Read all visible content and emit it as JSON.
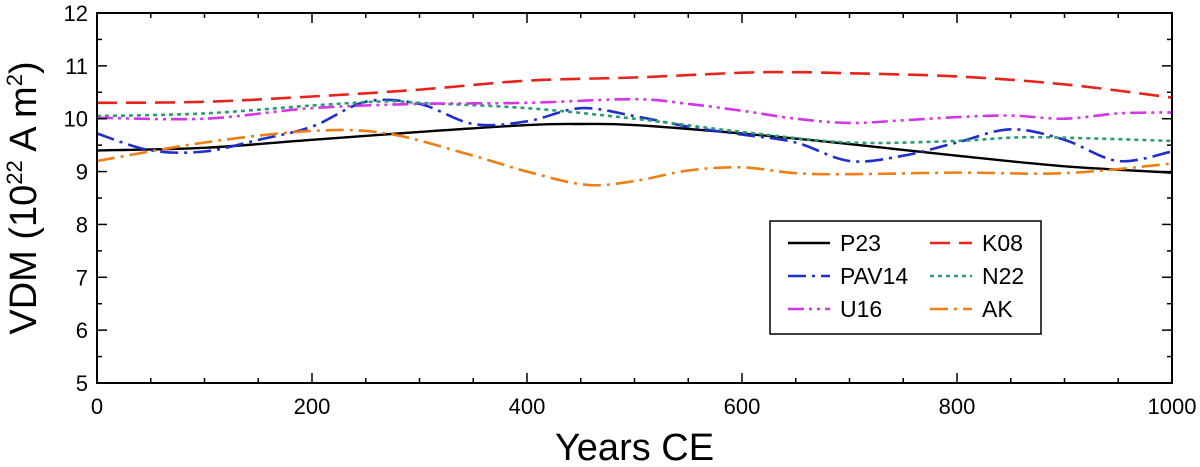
{
  "chart_data": {
    "type": "line",
    "xlabel": "Years CE",
    "ylabel_parts": [
      "VDM (10",
      "22",
      " A m",
      "2",
      ")"
    ],
    "xlim": [
      0,
      1000
    ],
    "ylim": [
      5,
      12
    ],
    "xticks": [
      0,
      200,
      400,
      600,
      800,
      1000
    ],
    "yticks": [
      5,
      6,
      7,
      8,
      9,
      10,
      11,
      12
    ],
    "grid": false,
    "legend_position": "lower-right",
    "series": [
      {
        "name": "P23",
        "color": "#000000",
        "dash": "solid",
        "points": [
          [
            0,
            9.4
          ],
          [
            100,
            9.45
          ],
          [
            200,
            9.6
          ],
          [
            300,
            9.75
          ],
          [
            400,
            9.88
          ],
          [
            450,
            9.9
          ],
          [
            500,
            9.88
          ],
          [
            600,
            9.72
          ],
          [
            700,
            9.52
          ],
          [
            800,
            9.3
          ],
          [
            900,
            9.1
          ],
          [
            1000,
            8.98
          ]
        ]
      },
      {
        "name": "K08",
        "color": "#e8231b",
        "dash": "dash",
        "points": [
          [
            0,
            10.3
          ],
          [
            100,
            10.32
          ],
          [
            200,
            10.42
          ],
          [
            300,
            10.55
          ],
          [
            400,
            10.72
          ],
          [
            500,
            10.78
          ],
          [
            600,
            10.87
          ],
          [
            650,
            10.88
          ],
          [
            700,
            10.86
          ],
          [
            800,
            10.8
          ],
          [
            900,
            10.65
          ],
          [
            1000,
            10.4
          ]
        ]
      },
      {
        "name": "PAV14",
        "color": "#1f2fcc",
        "dash": "dashdot",
        "points": [
          [
            0,
            9.72
          ],
          [
            50,
            9.4
          ],
          [
            100,
            9.38
          ],
          [
            150,
            9.6
          ],
          [
            200,
            9.85
          ],
          [
            250,
            10.32
          ],
          [
            300,
            10.28
          ],
          [
            350,
            9.9
          ],
          [
            400,
            9.95
          ],
          [
            450,
            10.2
          ],
          [
            500,
            10.05
          ],
          [
            550,
            9.85
          ],
          [
            600,
            9.7
          ],
          [
            650,
            9.55
          ],
          [
            700,
            9.2
          ],
          [
            750,
            9.3
          ],
          [
            800,
            9.55
          ],
          [
            850,
            9.8
          ],
          [
            900,
            9.6
          ],
          [
            950,
            9.2
          ],
          [
            1000,
            9.38
          ]
        ]
      },
      {
        "name": "N22",
        "color": "#2a9d6b",
        "dash": "dot",
        "points": [
          [
            0,
            10.05
          ],
          [
            100,
            10.1
          ],
          [
            200,
            10.25
          ],
          [
            270,
            10.33
          ],
          [
            300,
            10.3
          ],
          [
            400,
            10.2
          ],
          [
            500,
            10.0
          ],
          [
            600,
            9.75
          ],
          [
            700,
            9.55
          ],
          [
            800,
            9.58
          ],
          [
            870,
            9.65
          ],
          [
            1000,
            9.58
          ]
        ]
      },
      {
        "name": "U16",
        "color": "#d236e8",
        "dash": "dashdotdot",
        "points": [
          [
            0,
            10.02
          ],
          [
            100,
            10.0
          ],
          [
            200,
            10.2
          ],
          [
            300,
            10.28
          ],
          [
            400,
            10.3
          ],
          [
            500,
            10.37
          ],
          [
            550,
            10.28
          ],
          [
            600,
            10.15
          ],
          [
            650,
            10.0
          ],
          [
            700,
            9.92
          ],
          [
            750,
            9.97
          ],
          [
            800,
            10.03
          ],
          [
            850,
            10.06
          ],
          [
            900,
            10.0
          ],
          [
            950,
            10.1
          ],
          [
            1000,
            10.12
          ]
        ]
      },
      {
        "name": "AK",
        "color": "#f07e17",
        "dash": "dashdot",
        "points": [
          [
            0,
            9.2
          ],
          [
            100,
            9.55
          ],
          [
            200,
            9.77
          ],
          [
            270,
            9.72
          ],
          [
            350,
            9.3
          ],
          [
            400,
            9.0
          ],
          [
            455,
            8.75
          ],
          [
            500,
            8.82
          ],
          [
            550,
            9.02
          ],
          [
            600,
            9.08
          ],
          [
            650,
            8.97
          ],
          [
            700,
            8.95
          ],
          [
            800,
            8.98
          ],
          [
            900,
            8.97
          ],
          [
            1000,
            9.15
          ]
        ]
      }
    ]
  }
}
